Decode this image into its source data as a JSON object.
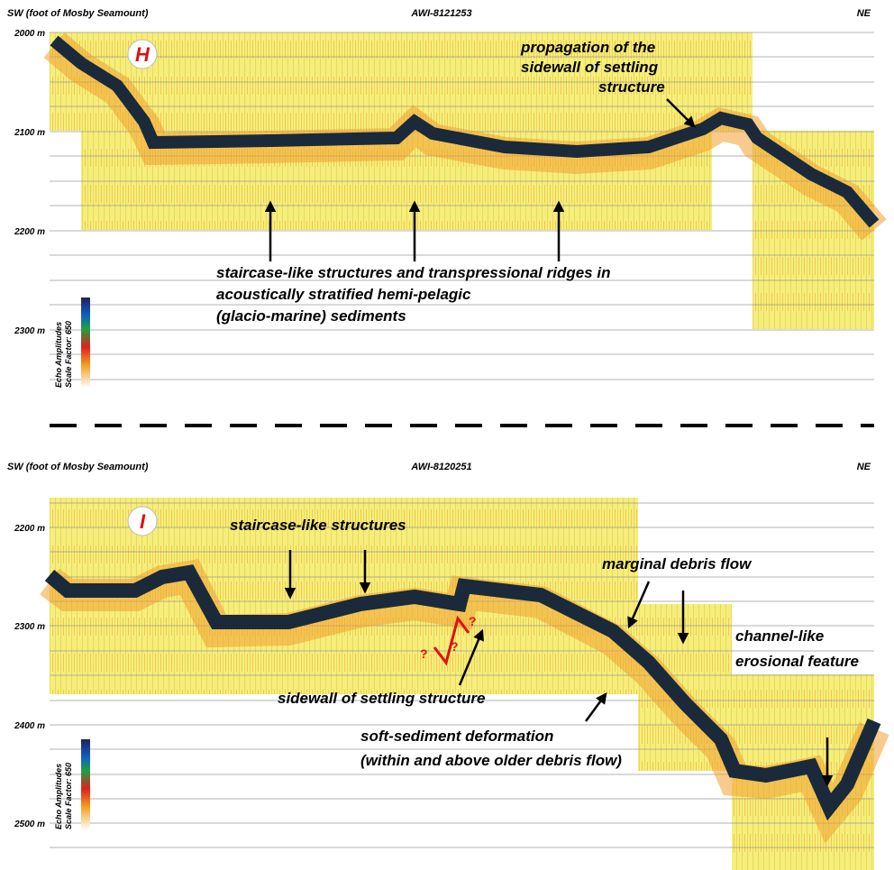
{
  "panels": [
    {
      "letter": "H",
      "left": "SW (foot of Mosby Seamount)",
      "center": "AWI-8121253",
      "right": "NE",
      "depths": [
        "2000 m",
        "2100 m",
        "2200 m",
        "2300 m"
      ],
      "colorbar": [
        "Echo Amplitudes",
        "Scale Factor: 650"
      ],
      "annotations": [
        {
          "lines": [
            "propagation of the",
            "sidewall of settling",
            "structure"
          ]
        },
        {
          "lines": [
            "staircase-like structures and transpressional ridges in",
            "acoustically stratified hemi-pelagic",
            "(glacio-marine) sediments"
          ]
        }
      ]
    },
    {
      "letter": "I",
      "left": "SW (foot of Mosby Seamount)",
      "center": "AWI-8120251",
      "right": "NE",
      "depths": [
        "2200 m",
        "2300 m",
        "2400 m",
        "2500 m"
      ],
      "colorbar": [
        "Echo Amplitudes",
        "Scale Factor: 650"
      ],
      "annotations": [
        {
          "lines": [
            "staircase-like structures"
          ]
        },
        {
          "lines": [
            "marginal debris flow"
          ]
        },
        {
          "lines": [
            "channel-like",
            "erosional feature"
          ]
        },
        {
          "lines": [
            "sidewall of settling structure"
          ]
        },
        {
          "lines": [
            "soft-sediment deformation",
            "(within and above older debris flow)"
          ]
        }
      ],
      "fault_marks": [
        "?",
        "?",
        "?"
      ]
    }
  ]
}
